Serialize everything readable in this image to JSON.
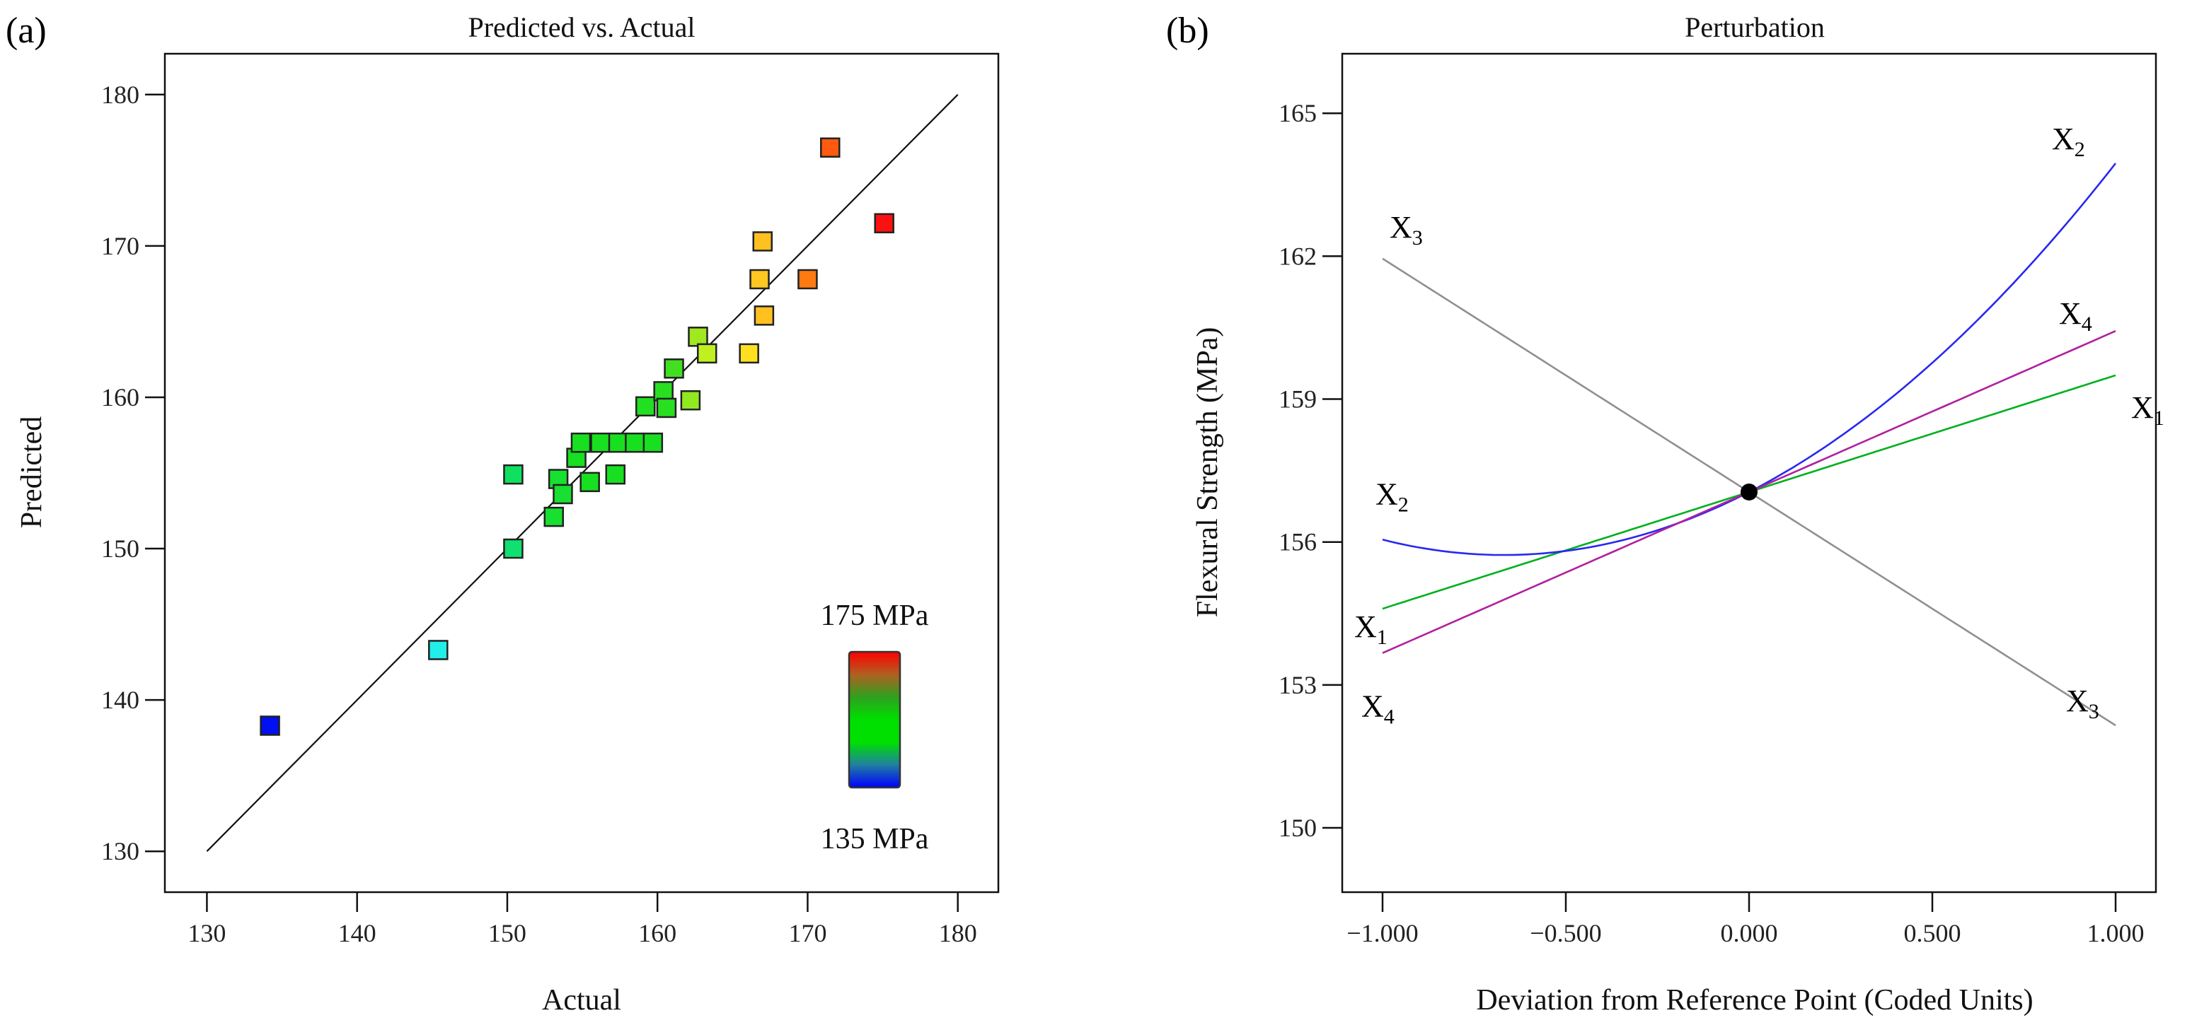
{
  "chart_data": [
    {
      "type": "scatter",
      "panel_label": "(a)",
      "title": "Predicted vs. Actual",
      "xlabel": "Actual",
      "ylabel": "Predicted",
      "xlim": [
        127.2,
        182.7
      ],
      "ylim": [
        127.3,
        182.7
      ],
      "xticks": [
        130,
        140,
        150,
        160,
        170,
        180
      ],
      "yticks": [
        130,
        140,
        150,
        160,
        170,
        180
      ],
      "reference_line": {
        "from": [
          130,
          130
        ],
        "to": [
          180,
          180
        ]
      },
      "colorbar": {
        "max_label": "175 MPa",
        "min_label": "135 MPa",
        "min": 135,
        "max": 175,
        "stops": [
          "#0000ff",
          "#1f7fa0",
          "#00e000",
          "#00e000",
          "#2fa01f",
          "#b06020",
          "#ff0000"
        ]
      },
      "points": [
        {
          "actual": 134.2,
          "predicted": 138.3,
          "color": "#0010f0"
        },
        {
          "actual": 145.4,
          "predicted": 143.3,
          "color": "#20f0e8"
        },
        {
          "actual": 150.4,
          "predicted": 150.0,
          "color": "#10e070"
        },
        {
          "actual": 150.4,
          "predicted": 154.9,
          "color": "#10e060"
        },
        {
          "actual": 153.1,
          "predicted": 152.1,
          "color": "#18e030"
        },
        {
          "actual": 153.4,
          "predicted": 154.6,
          "color": "#18e030"
        },
        {
          "actual": 153.7,
          "predicted": 153.6,
          "color": "#18e030"
        },
        {
          "actual": 154.6,
          "predicted": 156.0,
          "color": "#18e020"
        },
        {
          "actual": 154.9,
          "predicted": 157.0,
          "color": "#18e020"
        },
        {
          "actual": 155.5,
          "predicted": 154.4,
          "color": "#18e020"
        },
        {
          "actual": 156.2,
          "predicted": 157.0,
          "color": "#18e020"
        },
        {
          "actual": 157.2,
          "predicted": 154.9,
          "color": "#18e020"
        },
        {
          "actual": 157.4,
          "predicted": 157.0,
          "color": "#18e020"
        },
        {
          "actual": 158.5,
          "predicted": 157.0,
          "color": "#18e020"
        },
        {
          "actual": 159.7,
          "predicted": 157.0,
          "color": "#18e020"
        },
        {
          "actual": 159.2,
          "predicted": 159.4,
          "color": "#20e020"
        },
        {
          "actual": 160.4,
          "predicted": 160.4,
          "color": "#28e020"
        },
        {
          "actual": 160.6,
          "predicted": 159.3,
          "color": "#28e020"
        },
        {
          "actual": 161.1,
          "predicted": 161.9,
          "color": "#40e020"
        },
        {
          "actual": 162.2,
          "predicted": 159.8,
          "color": "#90e820"
        },
        {
          "actual": 162.7,
          "predicted": 164.0,
          "color": "#a0e820"
        },
        {
          "actual": 163.3,
          "predicted": 162.9,
          "color": "#c0f020"
        },
        {
          "actual": 166.1,
          "predicted": 162.9,
          "color": "#ffe020"
        },
        {
          "actual": 166.8,
          "predicted": 167.8,
          "color": "#ffc820"
        },
        {
          "actual": 167.0,
          "predicted": 170.3,
          "color": "#ffc020"
        },
        {
          "actual": 167.1,
          "predicted": 165.4,
          "color": "#ffc020"
        },
        {
          "actual": 170.0,
          "predicted": 167.8,
          "color": "#ff7a10"
        },
        {
          "actual": 171.5,
          "predicted": 176.5,
          "color": "#ff5a10"
        },
        {
          "actual": 175.1,
          "predicted": 171.5,
          "color": "#ff1010"
        }
      ]
    },
    {
      "type": "line",
      "panel_label": "(b)",
      "title": "Perturbation",
      "xlabel": "Deviation from Reference Point (Coded Units)",
      "ylabel": "Flexural Strength (MPa)",
      "xlim": [
        -1.11,
        1.11
      ],
      "ylim": [
        148.65,
        166.25
      ],
      "xticks": [
        "−1.000",
        "−0.500",
        "0.000",
        "0.500",
        "1.000"
      ],
      "xtick_values": [
        -1,
        -0.5,
        0,
        0.5,
        1
      ],
      "yticks": [
        150,
        153,
        156,
        159,
        162,
        165
      ],
      "reference_point": {
        "x": 0,
        "y": 157.05
      },
      "series": [
        {
          "name": "X1",
          "main": "X",
          "sub": "1",
          "color": "#00b020",
          "model": {
            "a": 157.05,
            "b": 2.45,
            "c": 0
          }
        },
        {
          "name": "X2",
          "main": "X",
          "sub": "2",
          "color": "#2828f0",
          "model": {
            "a": 157.05,
            "b": 3.95,
            "c": 2.95
          }
        },
        {
          "name": "X3",
          "main": "X",
          "sub": "3",
          "color": "#909090",
          "model": {
            "a": 157.05,
            "b": -4.9,
            "c": 0
          }
        },
        {
          "name": "X4",
          "main": "X",
          "sub": "4",
          "color": "#b020a0",
          "model": {
            "a": 157.05,
            "b": 3.38,
            "c": 0
          }
        }
      ]
    }
  ]
}
